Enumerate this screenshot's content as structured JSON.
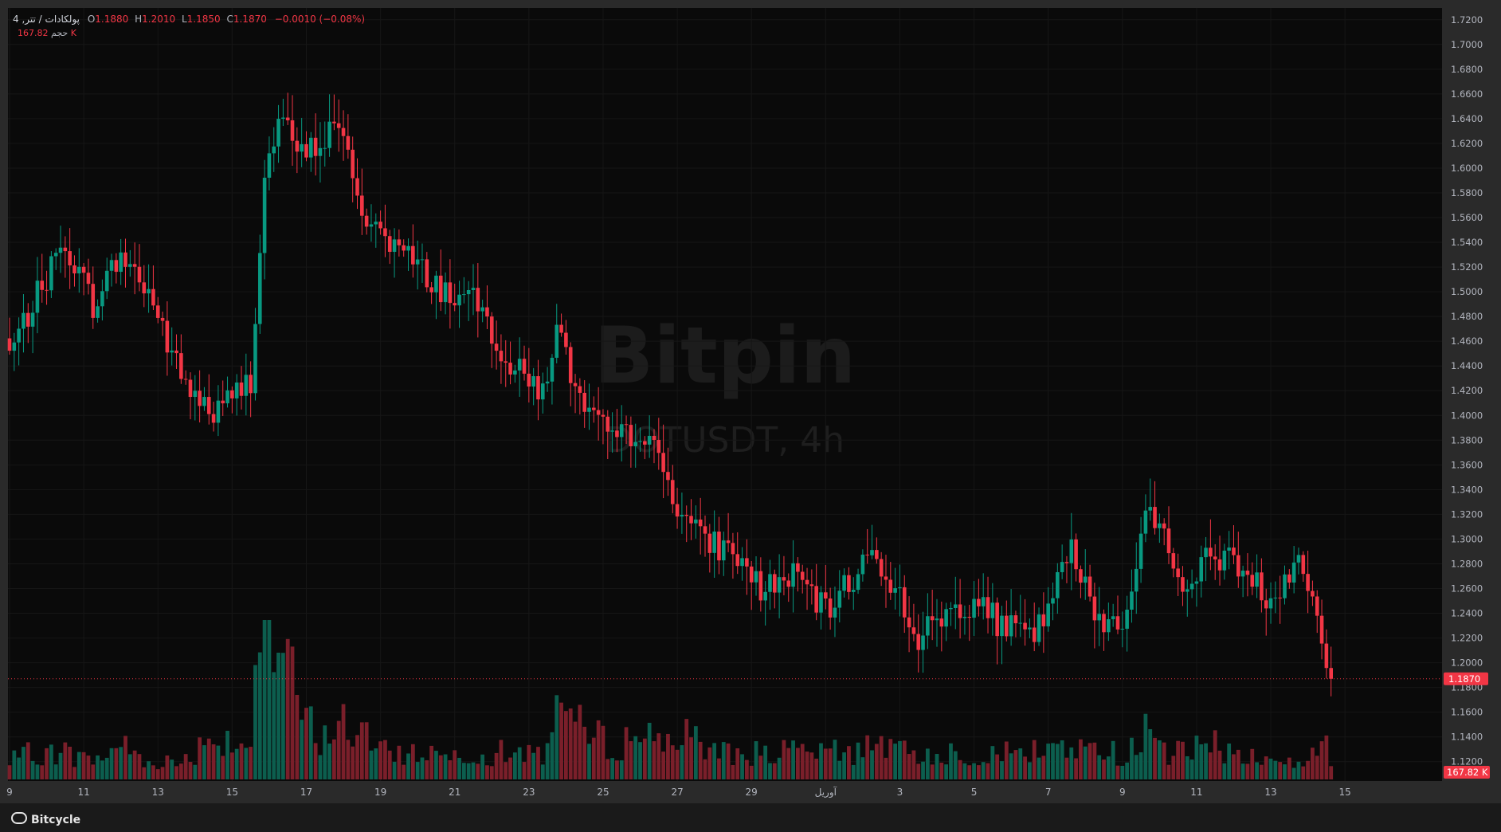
{
  "header": {
    "symbol_line": "پولکادات / تتر, 4",
    "open_label": "O",
    "open": "1.1880",
    "high_label": "H",
    "high": "1.2010",
    "low_label": "L",
    "low": "1.1850",
    "close_label": "C",
    "close": "1.1870",
    "change": "−0.0010 (−0.08%)",
    "volume_label": "حجم",
    "volume": "167.82 K"
  },
  "watermark": {
    "brand": "Bitpin",
    "ticker": "DOTUSDT, 4h"
  },
  "footer": {
    "brand": "Bitcycle"
  },
  "colors": {
    "up": "#089981",
    "down": "#f23645",
    "bg": "#0a0a0a",
    "grid": "#161616",
    "axis_text": "#b2b5be"
  },
  "chart_data": {
    "type": "candlestick",
    "price_axis": {
      "ticks": [
        "1.7200",
        "1.7000",
        "1.6800",
        "1.6600",
        "1.6400",
        "1.6200",
        "1.6000",
        "1.5800",
        "1.5600",
        "1.5400",
        "1.5200",
        "1.5000",
        "1.4800",
        "1.4600",
        "1.4400",
        "1.4200",
        "1.4000",
        "1.3800",
        "1.3600",
        "1.3400",
        "1.3200",
        "1.3000",
        "1.2800",
        "1.2600",
        "1.2400",
        "1.2200",
        "1.2000",
        "1.1800",
        "1.1600",
        "1.1400",
        "1.1200"
      ],
      "range": [
        1.105,
        1.725
      ]
    },
    "time_axis": {
      "labels": [
        "9",
        "11",
        "13",
        "15",
        "17",
        "19",
        "21",
        "23",
        "25",
        "27",
        "29",
        "آوریل",
        "3",
        "5",
        "7",
        "9",
        "11",
        "13",
        "15"
      ]
    },
    "last_price": "1.1870",
    "last_volume": "167.82 K",
    "anchors": [
      [
        0,
        1.45,
        2
      ],
      [
        5,
        1.49,
        3
      ],
      [
        12,
        1.54,
        3
      ],
      [
        18,
        1.49,
        2
      ],
      [
        24,
        1.53,
        4
      ],
      [
        30,
        1.5,
        2
      ],
      [
        37,
        1.43,
        2
      ],
      [
        44,
        1.4,
        5
      ],
      [
        52,
        1.43,
        4
      ],
      [
        55,
        1.59,
        18
      ],
      [
        58,
        1.64,
        16
      ],
      [
        63,
        1.61,
        7
      ],
      [
        67,
        1.62,
        5
      ],
      [
        71,
        1.64,
        6
      ],
      [
        75,
        1.57,
        6
      ],
      [
        80,
        1.55,
        3
      ],
      [
        88,
        1.52,
        3
      ],
      [
        94,
        1.5,
        3
      ],
      [
        101,
        1.49,
        3
      ],
      [
        108,
        1.44,
        3
      ],
      [
        115,
        1.42,
        3
      ],
      [
        118,
        1.47,
        9
      ],
      [
        124,
        1.4,
        5
      ],
      [
        131,
        1.38,
        4
      ],
      [
        136,
        1.39,
        5
      ],
      [
        139,
        1.37,
        5
      ],
      [
        144,
        1.33,
        5
      ],
      [
        149,
        1.3,
        4
      ],
      [
        156,
        1.29,
        3
      ],
      [
        162,
        1.26,
        3
      ],
      [
        170,
        1.27,
        3
      ],
      [
        176,
        1.24,
        3
      ],
      [
        182,
        1.27,
        3
      ],
      [
        186,
        1.29,
        5
      ],
      [
        191,
        1.26,
        3
      ],
      [
        196,
        1.22,
        3
      ],
      [
        202,
        1.24,
        3
      ],
      [
        208,
        1.25,
        3
      ],
      [
        214,
        1.23,
        3
      ],
      [
        221,
        1.22,
        3
      ],
      [
        229,
        1.29,
        4
      ],
      [
        234,
        1.24,
        3
      ],
      [
        240,
        1.23,
        3
      ],
      [
        245,
        1.32,
        5
      ],
      [
        250,
        1.3,
        3
      ],
      [
        254,
        1.25,
        3
      ],
      [
        258,
        1.29,
        4
      ],
      [
        265,
        1.28,
        3
      ],
      [
        272,
        1.25,
        2
      ],
      [
        278,
        1.29,
        2
      ],
      [
        283,
        1.22,
        3
      ],
      [
        285,
        1.19,
        12
      ]
    ],
    "time_label_candle_index": [
      0,
      16,
      32,
      48,
      64,
      80,
      96,
      112,
      128,
      144,
      160,
      176,
      192,
      208,
      224,
      240,
      256,
      272,
      288
    ]
  }
}
